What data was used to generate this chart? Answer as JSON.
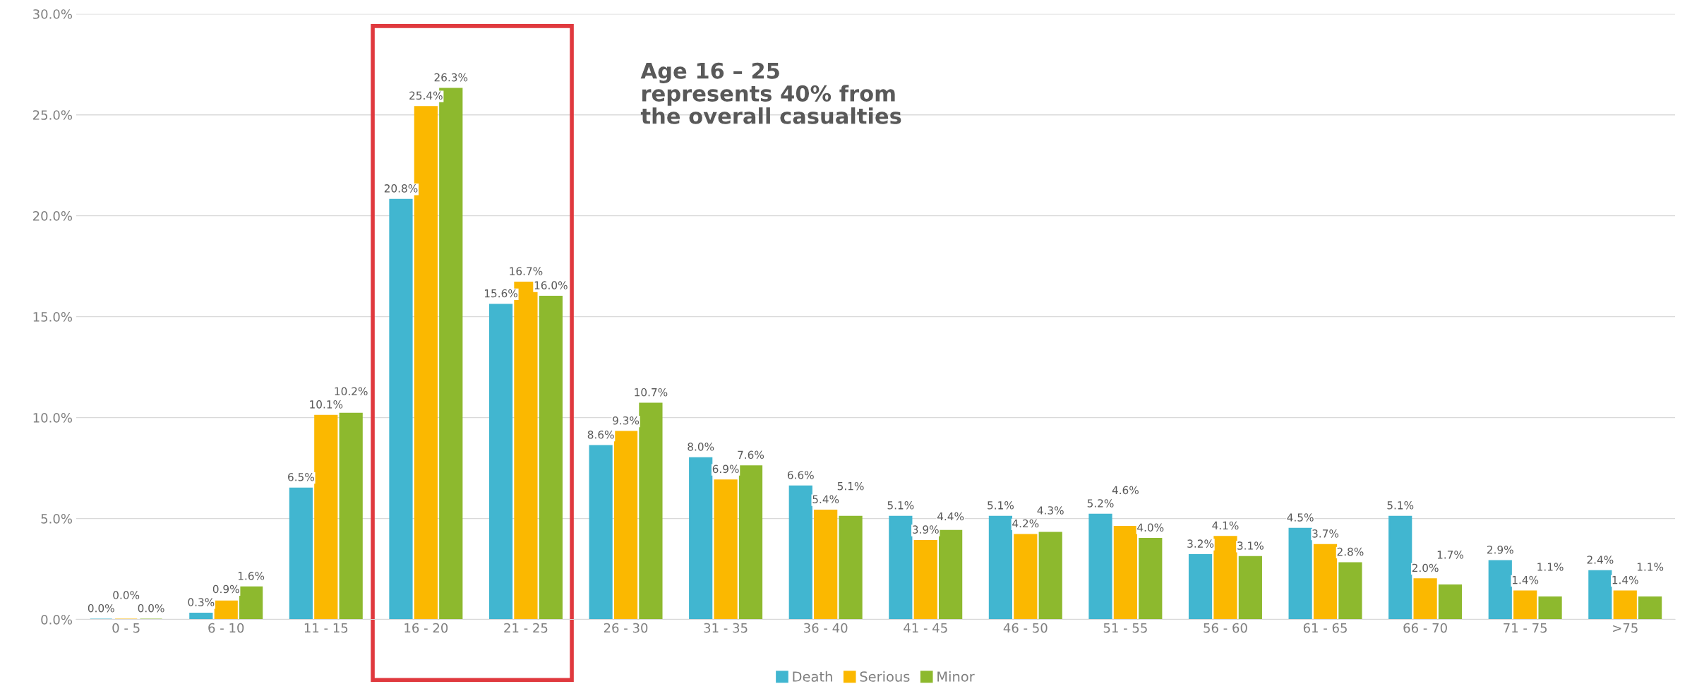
{
  "chart_data": {
    "type": "bar",
    "categories": [
      "0 - 5",
      "6 - 10",
      "11 - 15",
      "16 - 20",
      "21 - 25",
      "26 - 30",
      "31 - 35",
      "36 - 40",
      "41 - 45",
      "46 - 50",
      "51 - 55",
      "56 - 60",
      "61 - 65",
      "66 - 70",
      "71 - 75",
      ">75"
    ],
    "series": [
      {
        "name": "Death",
        "color": "#41b6d0",
        "values": [
          0.0,
          0.3,
          6.5,
          20.8,
          15.6,
          8.6,
          8.0,
          6.6,
          5.1,
          5.1,
          5.2,
          3.2,
          4.5,
          5.1,
          2.9,
          2.4
        ],
        "value_labels": [
          "0.0%",
          "0.3%",
          "6.5%",
          "20.8%",
          "15.6%",
          "8.6%",
          "8.0%",
          "6.6%",
          "5.1%",
          "5.1%",
          "5.2%",
          "3.2%",
          "4.5%",
          "5.1%",
          "2.9%",
          "2.4%"
        ]
      },
      {
        "name": "Serious",
        "color": "#fbb800",
        "values": [
          0.0,
          0.9,
          10.1,
          25.4,
          16.7,
          9.3,
          6.9,
          5.4,
          3.9,
          4.2,
          4.6,
          4.1,
          3.7,
          2.0,
          1.4,
          1.4
        ],
        "value_labels": [
          "0.0%",
          "0.9%",
          "10.1%",
          "25.4%",
          "16.7%",
          "9.3%",
          "6.9%",
          "5.4%",
          "3.9%",
          "4.2%",
          "4.6%",
          "4.1%",
          "3.7%",
          "2.0%",
          "1.4%",
          "1.4%"
        ]
      },
      {
        "name": "Minor",
        "color": "#8db92e",
        "values": [
          0.0,
          1.6,
          10.2,
          26.3,
          16.0,
          10.7,
          7.6,
          5.1,
          4.4,
          4.3,
          4.0,
          3.1,
          2.8,
          1.7,
          1.1,
          1.1
        ],
        "value_labels": [
          "0.0%",
          "1.6%",
          "10.2%",
          "26.3%",
          "16.0%",
          "10.7%",
          "7.6%",
          "5.1%",
          "4.4%",
          "4.3%",
          "4.0%",
          "3.1%",
          "2.8%",
          "1.7%",
          "1.1%",
          "1.1%"
        ]
      }
    ],
    "ylim": [
      0,
      30
    ],
    "yticks": [
      {
        "value": 0,
        "label": "0.0%"
      },
      {
        "value": 5,
        "label": "5.0%"
      },
      {
        "value": 10,
        "label": "10.0%"
      },
      {
        "value": 15,
        "label": "15.0%"
      },
      {
        "value": 20,
        "label": "20.0%"
      },
      {
        "value": 25,
        "label": "25.0%"
      },
      {
        "value": 30,
        "label": "30.0%"
      }
    ],
    "grid": "y",
    "legend": "bottom",
    "annotations": [
      "Age 16 – 25\nrepresents 40% from\nthe overall casualties"
    ]
  }
}
